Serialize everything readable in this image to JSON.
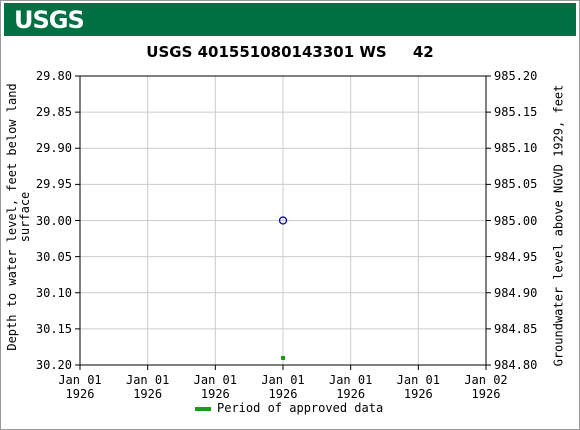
{
  "header": {
    "logo_text": "USGS"
  },
  "chart_data": {
    "type": "scatter",
    "title": "USGS 401551080143301 WS     42",
    "y_label": "Depth to water level, feet below land surface",
    "y2_label": "Groundwater level above NGVD 1929, feet",
    "xlim": [
      0,
      24
    ],
    "xticks": [
      {
        "value": 0,
        "label": "Jan 01\n1926"
      },
      {
        "value": 4,
        "label": "Jan 01\n1926"
      },
      {
        "value": 8,
        "label": "Jan 01\n1926"
      },
      {
        "value": 12,
        "label": "Jan 01\n1926"
      },
      {
        "value": 16,
        "label": "Jan 01\n1926"
      },
      {
        "value": 20,
        "label": "Jan 01\n1926"
      },
      {
        "value": 24,
        "label": "Jan 02\n1926"
      }
    ],
    "ylim": [
      30.2,
      29.8
    ],
    "yticks": [
      {
        "value": 29.8,
        "label": "29.80"
      },
      {
        "value": 29.85,
        "label": "29.85"
      },
      {
        "value": 29.9,
        "label": "29.90"
      },
      {
        "value": 29.95,
        "label": "29.95"
      },
      {
        "value": 30.0,
        "label": "30.00"
      },
      {
        "value": 30.05,
        "label": "30.05"
      },
      {
        "value": 30.1,
        "label": "30.10"
      },
      {
        "value": 30.15,
        "label": "30.15"
      },
      {
        "value": 30.2,
        "label": "30.20"
      }
    ],
    "y2lim": [
      984.8,
      985.2
    ],
    "y2ticks": [
      {
        "value": 985.2,
        "label": "985.20"
      },
      {
        "value": 985.15,
        "label": "985.15"
      },
      {
        "value": 985.1,
        "label": "985.10"
      },
      {
        "value": 985.05,
        "label": "985.05"
      },
      {
        "value": 985.0,
        "label": "985.00"
      },
      {
        "value": 984.95,
        "label": "984.95"
      },
      {
        "value": 984.9,
        "label": "984.90"
      },
      {
        "value": 984.85,
        "label": "984.85"
      },
      {
        "value": 984.8,
        "label": "984.80"
      }
    ],
    "grid": true,
    "points": {
      "color": "#0000a0",
      "x": [
        12
      ],
      "values": [
        30.0
      ]
    },
    "series": [
      {
        "name": "Period of approved data",
        "color": "#1a9e1a",
        "x": [
          12
        ]
      }
    ]
  }
}
